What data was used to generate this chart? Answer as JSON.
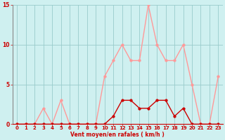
{
  "x": [
    0,
    1,
    2,
    3,
    4,
    5,
    6,
    7,
    8,
    9,
    10,
    11,
    12,
    13,
    14,
    15,
    16,
    17,
    18,
    19,
    20,
    21,
    22,
    23
  ],
  "vent_moyen": [
    0,
    0,
    0,
    0,
    0,
    0,
    0,
    0,
    0,
    0,
    0,
    1,
    3,
    3,
    2,
    2,
    3,
    3,
    1,
    2,
    0,
    0,
    0,
    0
  ],
  "rafales": [
    0,
    0,
    0,
    2,
    0,
    3,
    0,
    0,
    0,
    0,
    6,
    8,
    10,
    8,
    8,
    15,
    10,
    8,
    8,
    10,
    5,
    0,
    0,
    6
  ],
  "xlabel": "Vent moyen/en rafales ( km/h )",
  "ylim": [
    0,
    15
  ],
  "xlim": [
    -0.5,
    23.5
  ],
  "yticks": [
    0,
    5,
    10,
    15
  ],
  "xticks": [
    0,
    1,
    2,
    3,
    4,
    5,
    6,
    7,
    8,
    9,
    10,
    11,
    12,
    13,
    14,
    15,
    16,
    17,
    18,
    19,
    20,
    21,
    22,
    23
  ],
  "bg_color": "#cff0f0",
  "line_color_moyen": "#cc0000",
  "line_color_rafales": "#ff9999",
  "grid_color": "#99cccc",
  "marker_size": 2.5,
  "line_width": 1.0
}
